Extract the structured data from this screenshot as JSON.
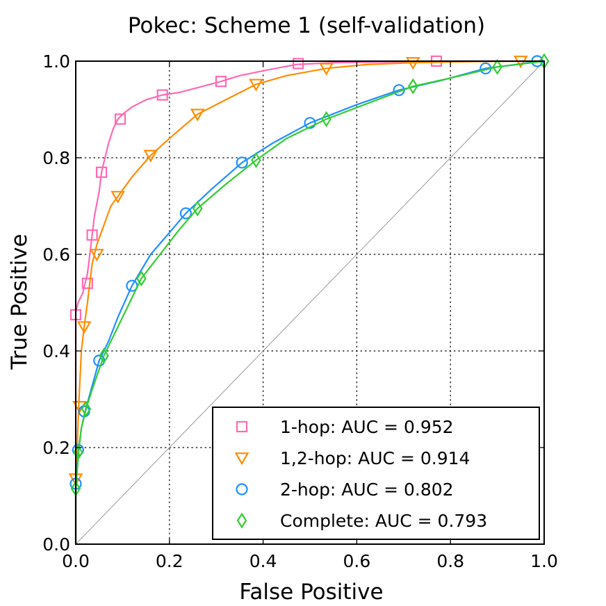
{
  "chart_data": {
    "type": "line",
    "title": "Pokec: Scheme 1 (self-validation)",
    "xlabel": "False Positive",
    "ylabel": "True Positive",
    "xlim": [
      0.0,
      1.0
    ],
    "ylim": [
      0.0,
      1.0
    ],
    "xticks": [
      "0.0",
      "0.2",
      "0.4",
      "0.6",
      "0.8",
      "1.0"
    ],
    "yticks": [
      "0.0",
      "0.2",
      "0.4",
      "0.6",
      "0.8",
      "1.0"
    ],
    "grid": true,
    "legend_position": "lower-right",
    "diagonal_reference": true,
    "diagonal_color": "#999999",
    "series": [
      {
        "name": "1-hop: AUC = 0.952",
        "marker": "square",
        "color": "#ff69b4",
        "points": [
          [
            0.0,
            0.0
          ],
          [
            0.0,
            0.48
          ],
          [
            0.005,
            0.5
          ],
          [
            0.01,
            0.51
          ],
          [
            0.015,
            0.52
          ],
          [
            0.02,
            0.54
          ],
          [
            0.025,
            0.56
          ],
          [
            0.03,
            0.6
          ],
          [
            0.035,
            0.64
          ],
          [
            0.04,
            0.68
          ],
          [
            0.05,
            0.73
          ],
          [
            0.055,
            0.77
          ],
          [
            0.06,
            0.79
          ],
          [
            0.07,
            0.83
          ],
          [
            0.08,
            0.86
          ],
          [
            0.09,
            0.88
          ],
          [
            0.1,
            0.89
          ],
          [
            0.12,
            0.905
          ],
          [
            0.15,
            0.92
          ],
          [
            0.185,
            0.93
          ],
          [
            0.22,
            0.935
          ],
          [
            0.26,
            0.945
          ],
          [
            0.31,
            0.958
          ],
          [
            0.35,
            0.97
          ],
          [
            0.4,
            0.98
          ],
          [
            0.47,
            0.993
          ],
          [
            0.55,
            0.997
          ],
          [
            0.65,
            0.998
          ],
          [
            0.77,
            1.0
          ],
          [
            1.0,
            1.0
          ]
        ],
        "markers": [
          [
            0.0,
            0.475
          ],
          [
            0.025,
            0.54
          ],
          [
            0.035,
            0.64
          ],
          [
            0.055,
            0.77
          ],
          [
            0.095,
            0.88
          ],
          [
            0.185,
            0.93
          ],
          [
            0.31,
            0.958
          ],
          [
            0.475,
            0.995
          ],
          [
            0.77,
            1.0
          ]
        ]
      },
      {
        "name": "1,2-hop: AUC = 0.914",
        "marker": "triangle-down",
        "color": "#ff8c00",
        "points": [
          [
            0.0,
            0.0
          ],
          [
            0.0,
            0.13
          ],
          [
            0.003,
            0.2
          ],
          [
            0.006,
            0.28
          ],
          [
            0.012,
            0.4
          ],
          [
            0.018,
            0.45
          ],
          [
            0.025,
            0.5
          ],
          [
            0.035,
            0.58
          ],
          [
            0.045,
            0.62
          ],
          [
            0.06,
            0.66
          ],
          [
            0.075,
            0.7
          ],
          [
            0.09,
            0.72
          ],
          [
            0.12,
            0.76
          ],
          [
            0.16,
            0.805
          ],
          [
            0.2,
            0.84
          ],
          [
            0.26,
            0.89
          ],
          [
            0.32,
            0.92
          ],
          [
            0.385,
            0.952
          ],
          [
            0.45,
            0.97
          ],
          [
            0.535,
            0.985
          ],
          [
            0.62,
            0.993
          ],
          [
            0.72,
            0.997
          ],
          [
            0.85,
            0.999
          ],
          [
            0.95,
            1.0
          ],
          [
            1.0,
            1.0
          ]
        ],
        "markers": [
          [
            0.0,
            0.135
          ],
          [
            0.008,
            0.285
          ],
          [
            0.018,
            0.45
          ],
          [
            0.045,
            0.6
          ],
          [
            0.09,
            0.72
          ],
          [
            0.16,
            0.805
          ],
          [
            0.26,
            0.89
          ],
          [
            0.385,
            0.952
          ],
          [
            0.535,
            0.985
          ],
          [
            0.72,
            0.997
          ],
          [
            0.95,
            1.0
          ]
        ]
      },
      {
        "name": "2-hop: AUC = 0.802",
        "marker": "circle",
        "color": "#1e90ff",
        "points": [
          [
            0.0,
            0.0
          ],
          [
            0.0,
            0.12
          ],
          [
            0.003,
            0.16
          ],
          [
            0.006,
            0.195
          ],
          [
            0.012,
            0.24
          ],
          [
            0.02,
            0.275
          ],
          [
            0.03,
            0.31
          ],
          [
            0.05,
            0.38
          ],
          [
            0.07,
            0.42
          ],
          [
            0.09,
            0.47
          ],
          [
            0.12,
            0.535
          ],
          [
            0.16,
            0.6
          ],
          [
            0.2,
            0.645
          ],
          [
            0.235,
            0.685
          ],
          [
            0.29,
            0.735
          ],
          [
            0.355,
            0.79
          ],
          [
            0.42,
            0.83
          ],
          [
            0.5,
            0.872
          ],
          [
            0.6,
            0.91
          ],
          [
            0.69,
            0.94
          ],
          [
            0.78,
            0.96
          ],
          [
            0.875,
            0.985
          ],
          [
            0.94,
            0.993
          ],
          [
            0.99,
            1.0
          ],
          [
            1.0,
            1.0
          ]
        ],
        "markers": [
          [
            0.0,
            0.125
          ],
          [
            0.005,
            0.195
          ],
          [
            0.018,
            0.275
          ],
          [
            0.05,
            0.38
          ],
          [
            0.12,
            0.535
          ],
          [
            0.235,
            0.685
          ],
          [
            0.355,
            0.79
          ],
          [
            0.5,
            0.872
          ],
          [
            0.69,
            0.94
          ],
          [
            0.875,
            0.985
          ],
          [
            0.985,
            1.0
          ]
        ]
      },
      {
        "name": "Complete: AUC = 0.793",
        "marker": "diamond",
        "color": "#32cd32",
        "points": [
          [
            0.0,
            0.0
          ],
          [
            0.0,
            0.11
          ],
          [
            0.003,
            0.15
          ],
          [
            0.006,
            0.19
          ],
          [
            0.012,
            0.24
          ],
          [
            0.022,
            0.28
          ],
          [
            0.035,
            0.32
          ],
          [
            0.06,
            0.39
          ],
          [
            0.08,
            0.43
          ],
          [
            0.1,
            0.47
          ],
          [
            0.14,
            0.55
          ],
          [
            0.18,
            0.6
          ],
          [
            0.22,
            0.65
          ],
          [
            0.26,
            0.695
          ],
          [
            0.32,
            0.745
          ],
          [
            0.385,
            0.795
          ],
          [
            0.45,
            0.84
          ],
          [
            0.535,
            0.88
          ],
          [
            0.63,
            0.915
          ],
          [
            0.72,
            0.948
          ],
          [
            0.8,
            0.965
          ],
          [
            0.9,
            0.988
          ],
          [
            0.95,
            0.994
          ],
          [
            1.0,
            1.0
          ]
        ],
        "markers": [
          [
            0.0,
            0.115
          ],
          [
            0.005,
            0.19
          ],
          [
            0.022,
            0.28
          ],
          [
            0.06,
            0.39
          ],
          [
            0.14,
            0.55
          ],
          [
            0.26,
            0.695
          ],
          [
            0.385,
            0.795
          ],
          [
            0.535,
            0.88
          ],
          [
            0.72,
            0.948
          ],
          [
            0.9,
            0.988
          ],
          [
            1.0,
            1.0
          ]
        ]
      }
    ]
  }
}
